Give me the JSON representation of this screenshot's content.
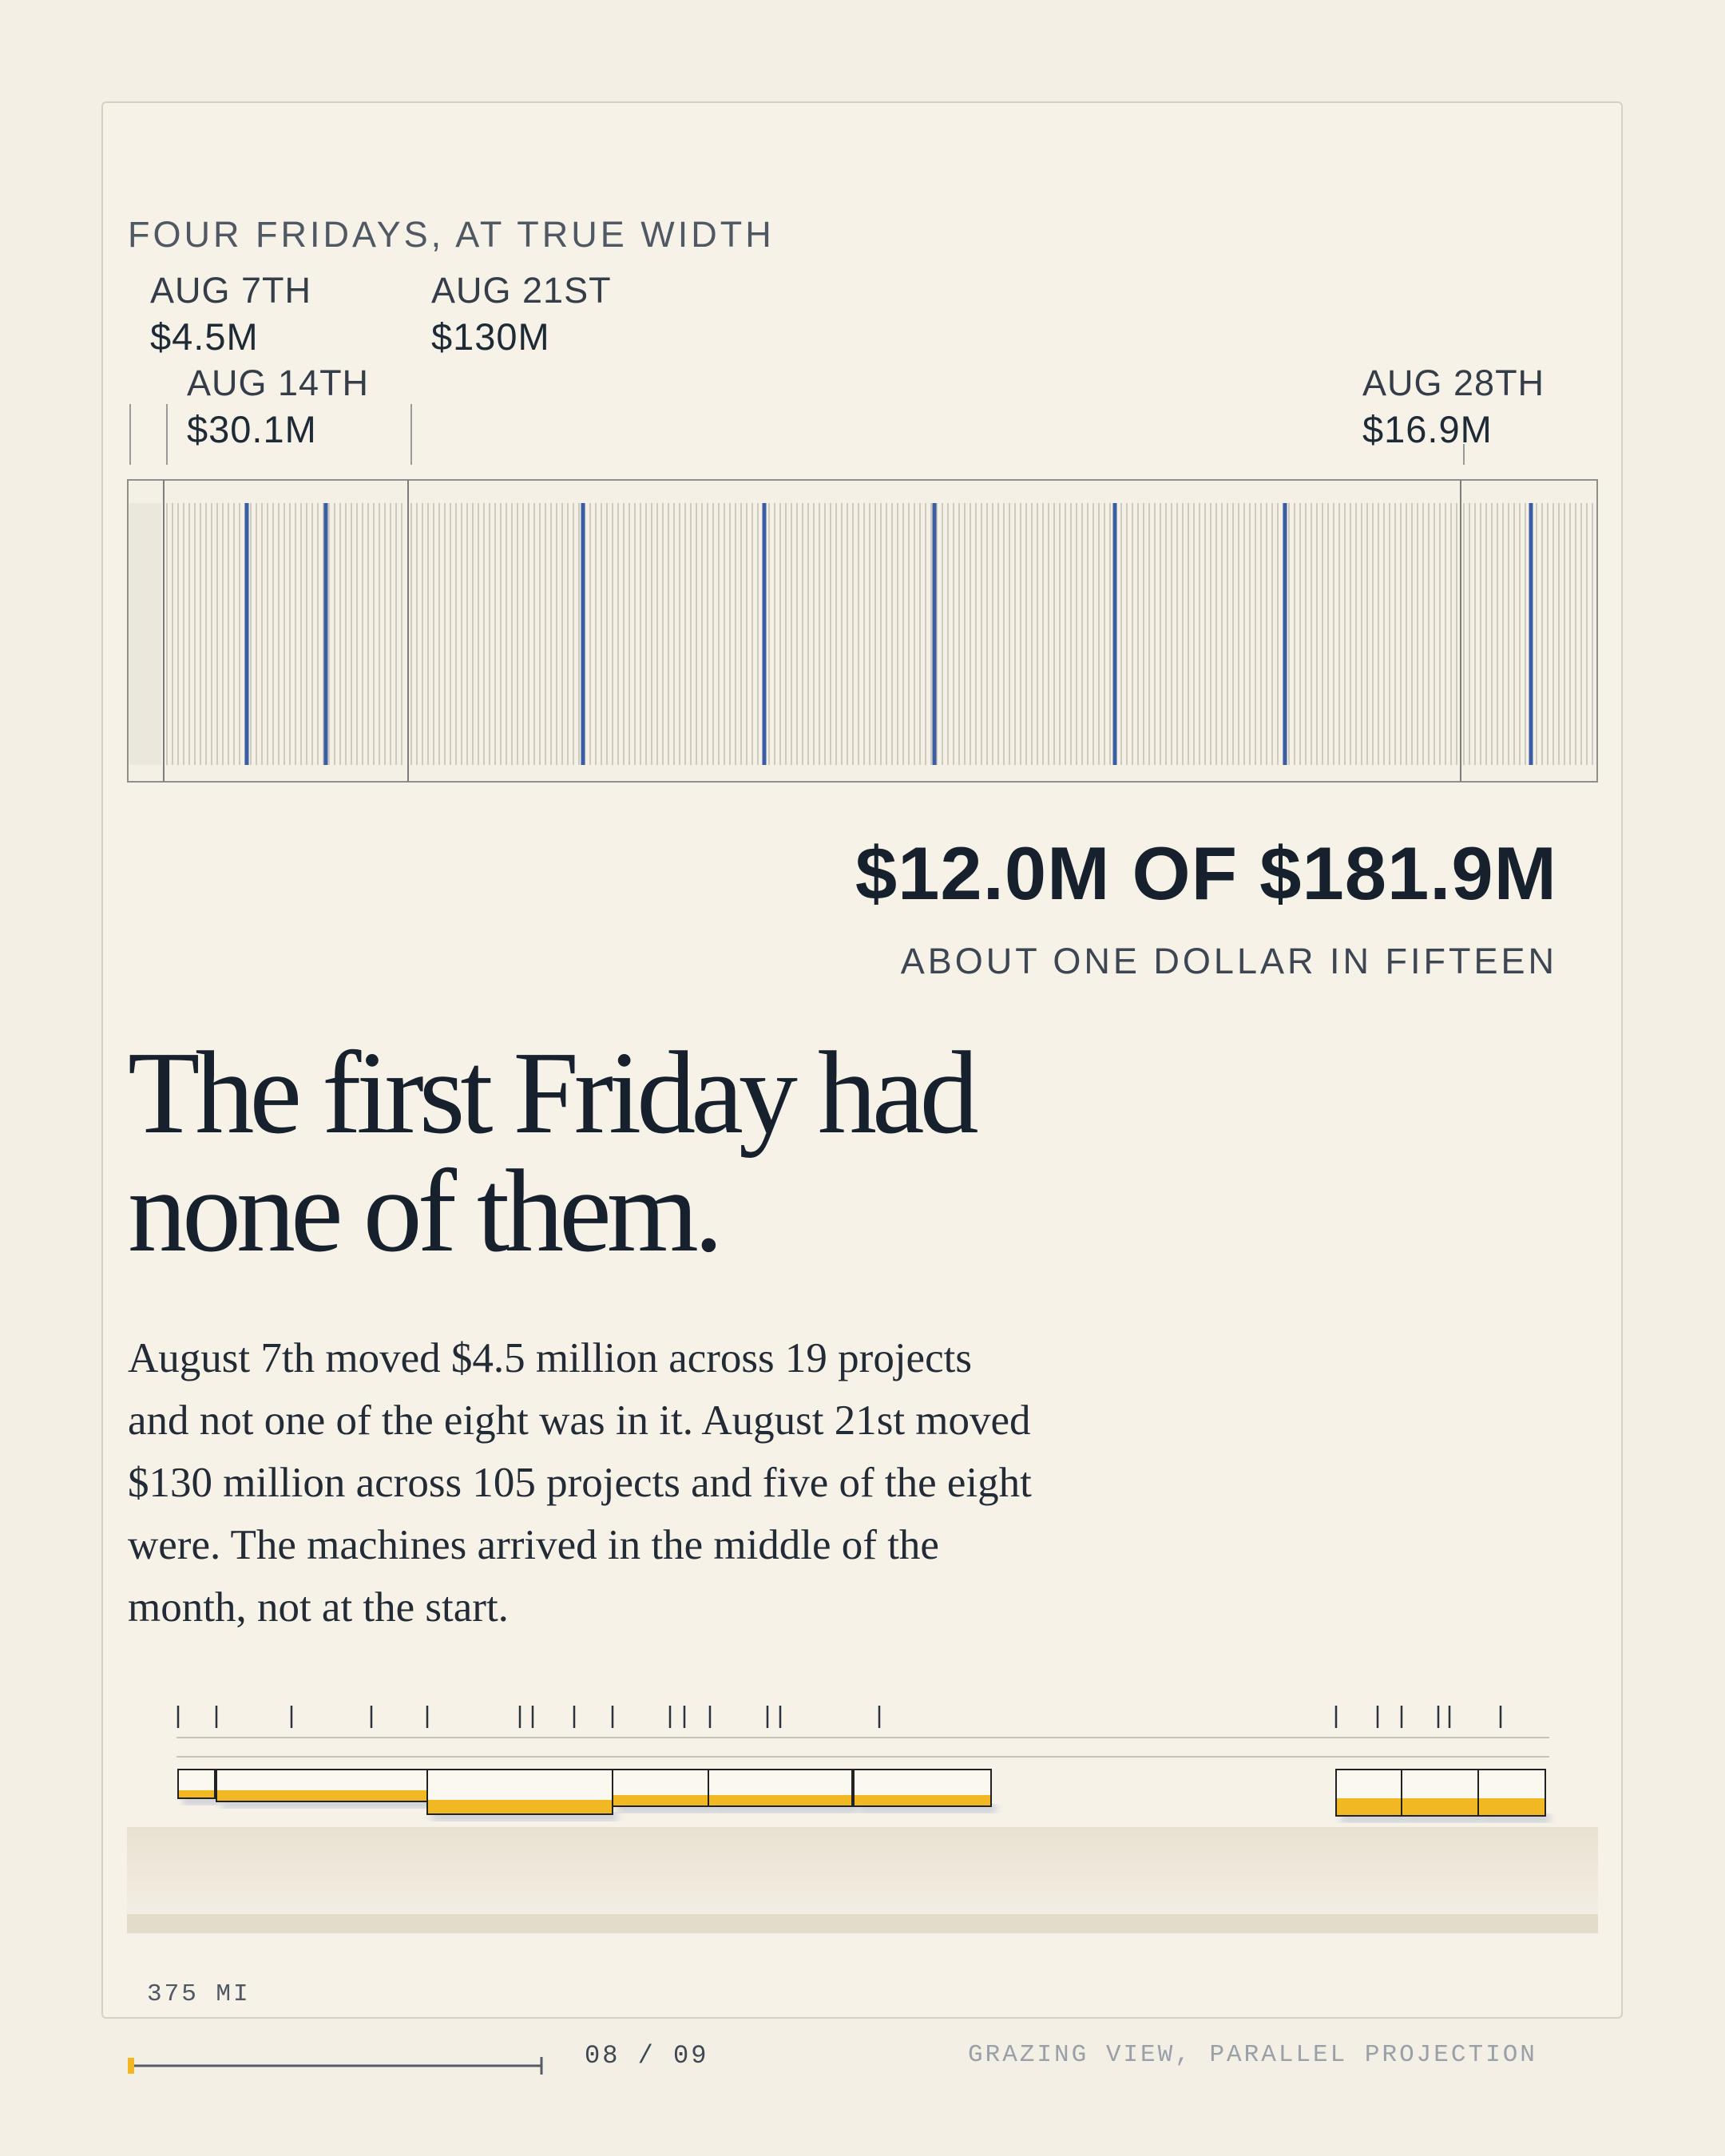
{
  "figure": {
    "title": "FOUR FRIDAYS, AT TRUE WIDTH",
    "fridays": [
      {
        "date": "AUG 7TH",
        "amount": "$4.5M"
      },
      {
        "date": "AUG 14TH",
        "amount": "$30.1M"
      },
      {
        "date": "AUG 21ST",
        "amount": "$130M"
      },
      {
        "date": "AUG 28TH",
        "amount": "$16.9M"
      }
    ],
    "highlight_color": "#3a5ea3"
  },
  "headline": {
    "amount": "$12.0M OF $181.9M",
    "sub": "ABOUT ONE DOLLAR IN FIFTEEN"
  },
  "story": {
    "title": "The first Friday had none of them.",
    "body": "August 7th moved $4.5 million across 19 projects and not one of the eight was in it. August 21st moved $130 million across 105 projects and five of the eight were. The machines arrived in the middle of the month, not at the start."
  },
  "scale": {
    "label": "375 MI"
  },
  "footer": {
    "page": "08 / 09",
    "view": "GRAZING VIEW, PARALLEL PROJECTION",
    "progress": 0.0,
    "accent_color": "#f2b824"
  }
}
